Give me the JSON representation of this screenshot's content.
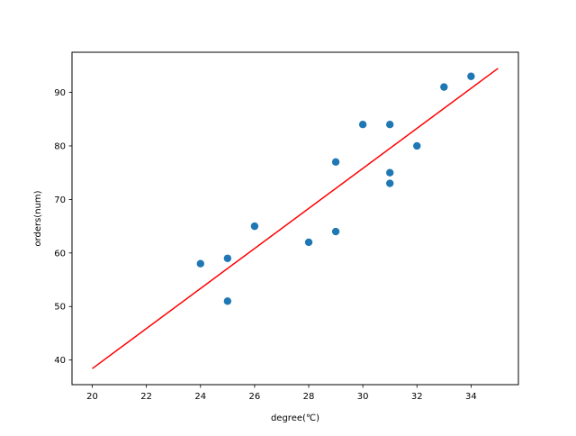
{
  "chart_data": {
    "type": "scatter",
    "title": "",
    "xlabel": "degree(℃)",
    "ylabel": "orders(num)",
    "xlim": [
      19.25,
      35.75
    ],
    "ylim": [
      35.4,
      97.5
    ],
    "x_ticks": [
      20,
      22,
      24,
      26,
      28,
      30,
      32,
      34
    ],
    "y_ticks": [
      40,
      50,
      60,
      70,
      80,
      90
    ],
    "grid": false,
    "series": [
      {
        "type": "scatter",
        "color": "#1f77b4",
        "points": [
          {
            "x": 24,
            "y": 58
          },
          {
            "x": 25,
            "y": 59
          },
          {
            "x": 25,
            "y": 51
          },
          {
            "x": 26,
            "y": 65
          },
          {
            "x": 28,
            "y": 62
          },
          {
            "x": 29,
            "y": 77
          },
          {
            "x": 29,
            "y": 64
          },
          {
            "x": 30,
            "y": 84
          },
          {
            "x": 31,
            "y": 84
          },
          {
            "x": 31,
            "y": 75
          },
          {
            "x": 31,
            "y": 73
          },
          {
            "x": 32,
            "y": 80
          },
          {
            "x": 33,
            "y": 91
          },
          {
            "x": 34,
            "y": 93
          }
        ]
      },
      {
        "type": "line",
        "color": "#ff0000",
        "points": [
          {
            "x": 20,
            "y": 38.4
          },
          {
            "x": 35,
            "y": 94.5
          }
        ]
      }
    ]
  }
}
